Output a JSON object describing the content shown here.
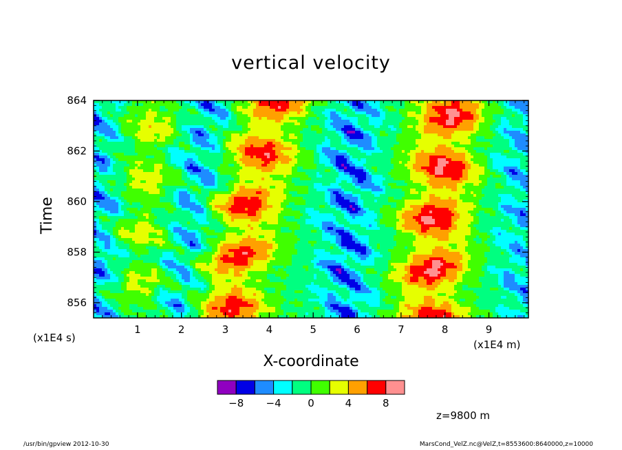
{
  "chart_data": {
    "type": "heatmap",
    "title": "vertical velocity",
    "xlabel": "X-coordinate",
    "ylabel": "Time",
    "x_unit_label": "(x1E4 m)",
    "y_unit_label": "(x1E4 s)",
    "xlim": [
      0,
      9.9
    ],
    "ylim": [
      855.4,
      864
    ],
    "x_ticks": [
      "1",
      "2",
      "3",
      "4",
      "5",
      "6",
      "7",
      "8",
      "9"
    ],
    "y_ticks": [
      "856",
      "858",
      "860",
      "862",
      "864"
    ],
    "colorbar": {
      "levels": [
        -10,
        -8,
        -6,
        -4,
        -2,
        0,
        2,
        4,
        6,
        8,
        10
      ],
      "colors": [
        "#9000c0",
        "#0000e6",
        "#1e8cff",
        "#00ffff",
        "#00ff80",
        "#40ff00",
        "#e6ff00",
        "#ffa000",
        "#ff0000",
        "#ff9090"
      ],
      "tick_labels": [
        "-8",
        "-4",
        "0",
        "4",
        "8"
      ]
    },
    "updraft_bands": [
      {
        "x_at_bottom": 3.0,
        "x_at_top": 4.1,
        "peak": 8
      },
      {
        "x_at_bottom": 7.6,
        "x_at_top": 8.1,
        "peak": 9
      },
      {
        "x_at_bottom": 1.1,
        "x_at_top": 1.3,
        "peak": 4
      }
    ],
    "downdraft_bands": [
      {
        "x_at_bottom": 1.8,
        "x_at_top": 2.6,
        "peak": -6
      },
      {
        "x_at_bottom": 5.7,
        "x_at_top": 5.9,
        "peak": -7
      },
      {
        "x_at_bottom": 9.8,
        "x_at_top": 9.7,
        "peak": -5
      },
      {
        "x_at_bottom": 0.1,
        "x_at_top": 0.1,
        "peak": -6
      }
    ]
  },
  "annotations": {
    "z_level": "z=9800  m",
    "footer_left": "/usr/bin/gpview   2012-10-30",
    "footer_right": "MarsCond_VelZ.nc@VelZ,t=8553600:8640000,z=10000"
  }
}
